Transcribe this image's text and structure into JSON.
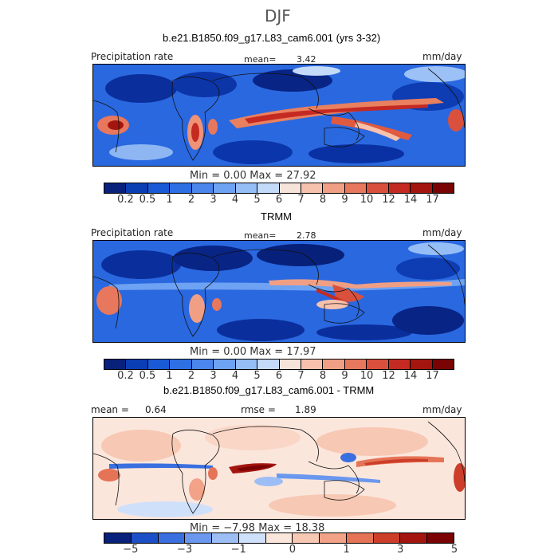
{
  "title": "DJF",
  "panels": [
    {
      "id": "model",
      "subtitle": "b.e21.B1850.f09_g17.L83_cam6.001 (yrs 3-32)",
      "left_label": "Precipitation rate",
      "mean_label": "mean=",
      "mean_value": "3.42",
      "units": "mm/day",
      "minmax": "Min =    0.00 Max =  27.92",
      "colorbar_labels": [
        "0.2",
        "0.5",
        "1",
        "2",
        "3",
        "4",
        "5",
        "6",
        "7",
        "8",
        "9",
        "10",
        "12",
        "14",
        "17"
      ]
    },
    {
      "id": "obs",
      "subtitle": "TRMM",
      "left_label": "Precipitation rate",
      "mean_label": "mean=",
      "mean_value": "2.78",
      "units": "mm/day",
      "minmax": "Min =    0.00 Max =  17.97",
      "colorbar_labels": [
        "0.2",
        "0.5",
        "1",
        "2",
        "3",
        "4",
        "5",
        "6",
        "7",
        "8",
        "9",
        "10",
        "12",
        "14",
        "17"
      ]
    },
    {
      "id": "diff",
      "subtitle": "b.e21.B1850.f09_g17.L83_cam6.001 - TRMM",
      "mean_label": "mean =",
      "mean_value": "0.64",
      "rmse_label": "rmse =",
      "rmse_value": "1.89",
      "units": "mm/day",
      "minmax": "Min =  −7.98 Max =  18.38",
      "colorbar_labels": [
        "−5",
        "−3",
        "−1",
        "0",
        "1",
        "3",
        "5"
      ]
    }
  ],
  "colors": {
    "precip_scale": [
      "#08217a",
      "#0a3fb4",
      "#1a5ad6",
      "#2e6fe3",
      "#4a86ec",
      "#6ea2f2",
      "#95bdf6",
      "#c4daf9",
      "#f6e3da",
      "#f7c2ad",
      "#f19f84",
      "#e7775d",
      "#d9503d",
      "#c52a22",
      "#a5150f",
      "#7a0403"
    ],
    "diff_scale": [
      "#08217a",
      "#1b4fc8",
      "#3a6fe0",
      "#6b98ee",
      "#9dbdf5",
      "#cfe0fb",
      "#fbe6dc",
      "#f7c8b3",
      "#f1a287",
      "#e57356",
      "#cc3e2a",
      "#a5150f",
      "#7a0403"
    ]
  }
}
